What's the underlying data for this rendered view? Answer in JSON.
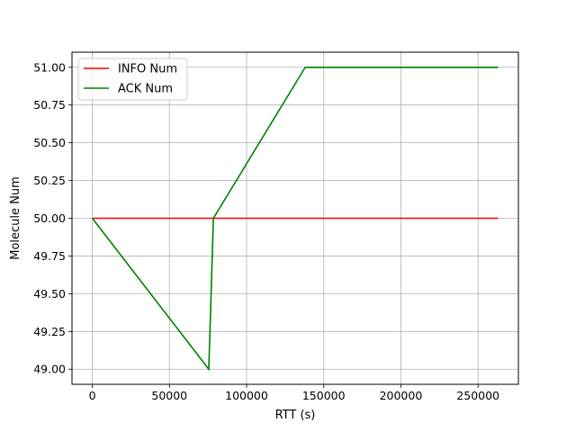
{
  "chart_data": {
    "type": "line",
    "title": "",
    "xlabel": "RTT (s)",
    "ylabel": "Molecule Num",
    "xlim": [
      -13150,
      276150
    ],
    "ylim": [
      48.9,
      51.1
    ],
    "x_ticks": [
      0,
      50000,
      100000,
      150000,
      200000,
      250000
    ],
    "x_tick_labels": [
      "0",
      "50000",
      "100000",
      "150000",
      "200000",
      "250000"
    ],
    "y_ticks": [
      49.0,
      49.25,
      49.5,
      49.75,
      50.0,
      50.25,
      50.5,
      50.75,
      51.0
    ],
    "y_tick_labels": [
      "49.00",
      "49.25",
      "49.50",
      "49.75",
      "50.00",
      "50.25",
      "50.50",
      "50.75",
      "51.00"
    ],
    "grid": true,
    "legend_position": "top-left",
    "series": [
      {
        "name": "INFO Num",
        "color": "#ff0000",
        "x": [
          0,
          263000
        ],
        "y": [
          50,
          50
        ]
      },
      {
        "name": "ACK Num",
        "color": "#008000",
        "x": [
          0,
          75500,
          78500,
          138000,
          263000
        ],
        "y": [
          50,
          49,
          50,
          51,
          51
        ]
      }
    ]
  }
}
